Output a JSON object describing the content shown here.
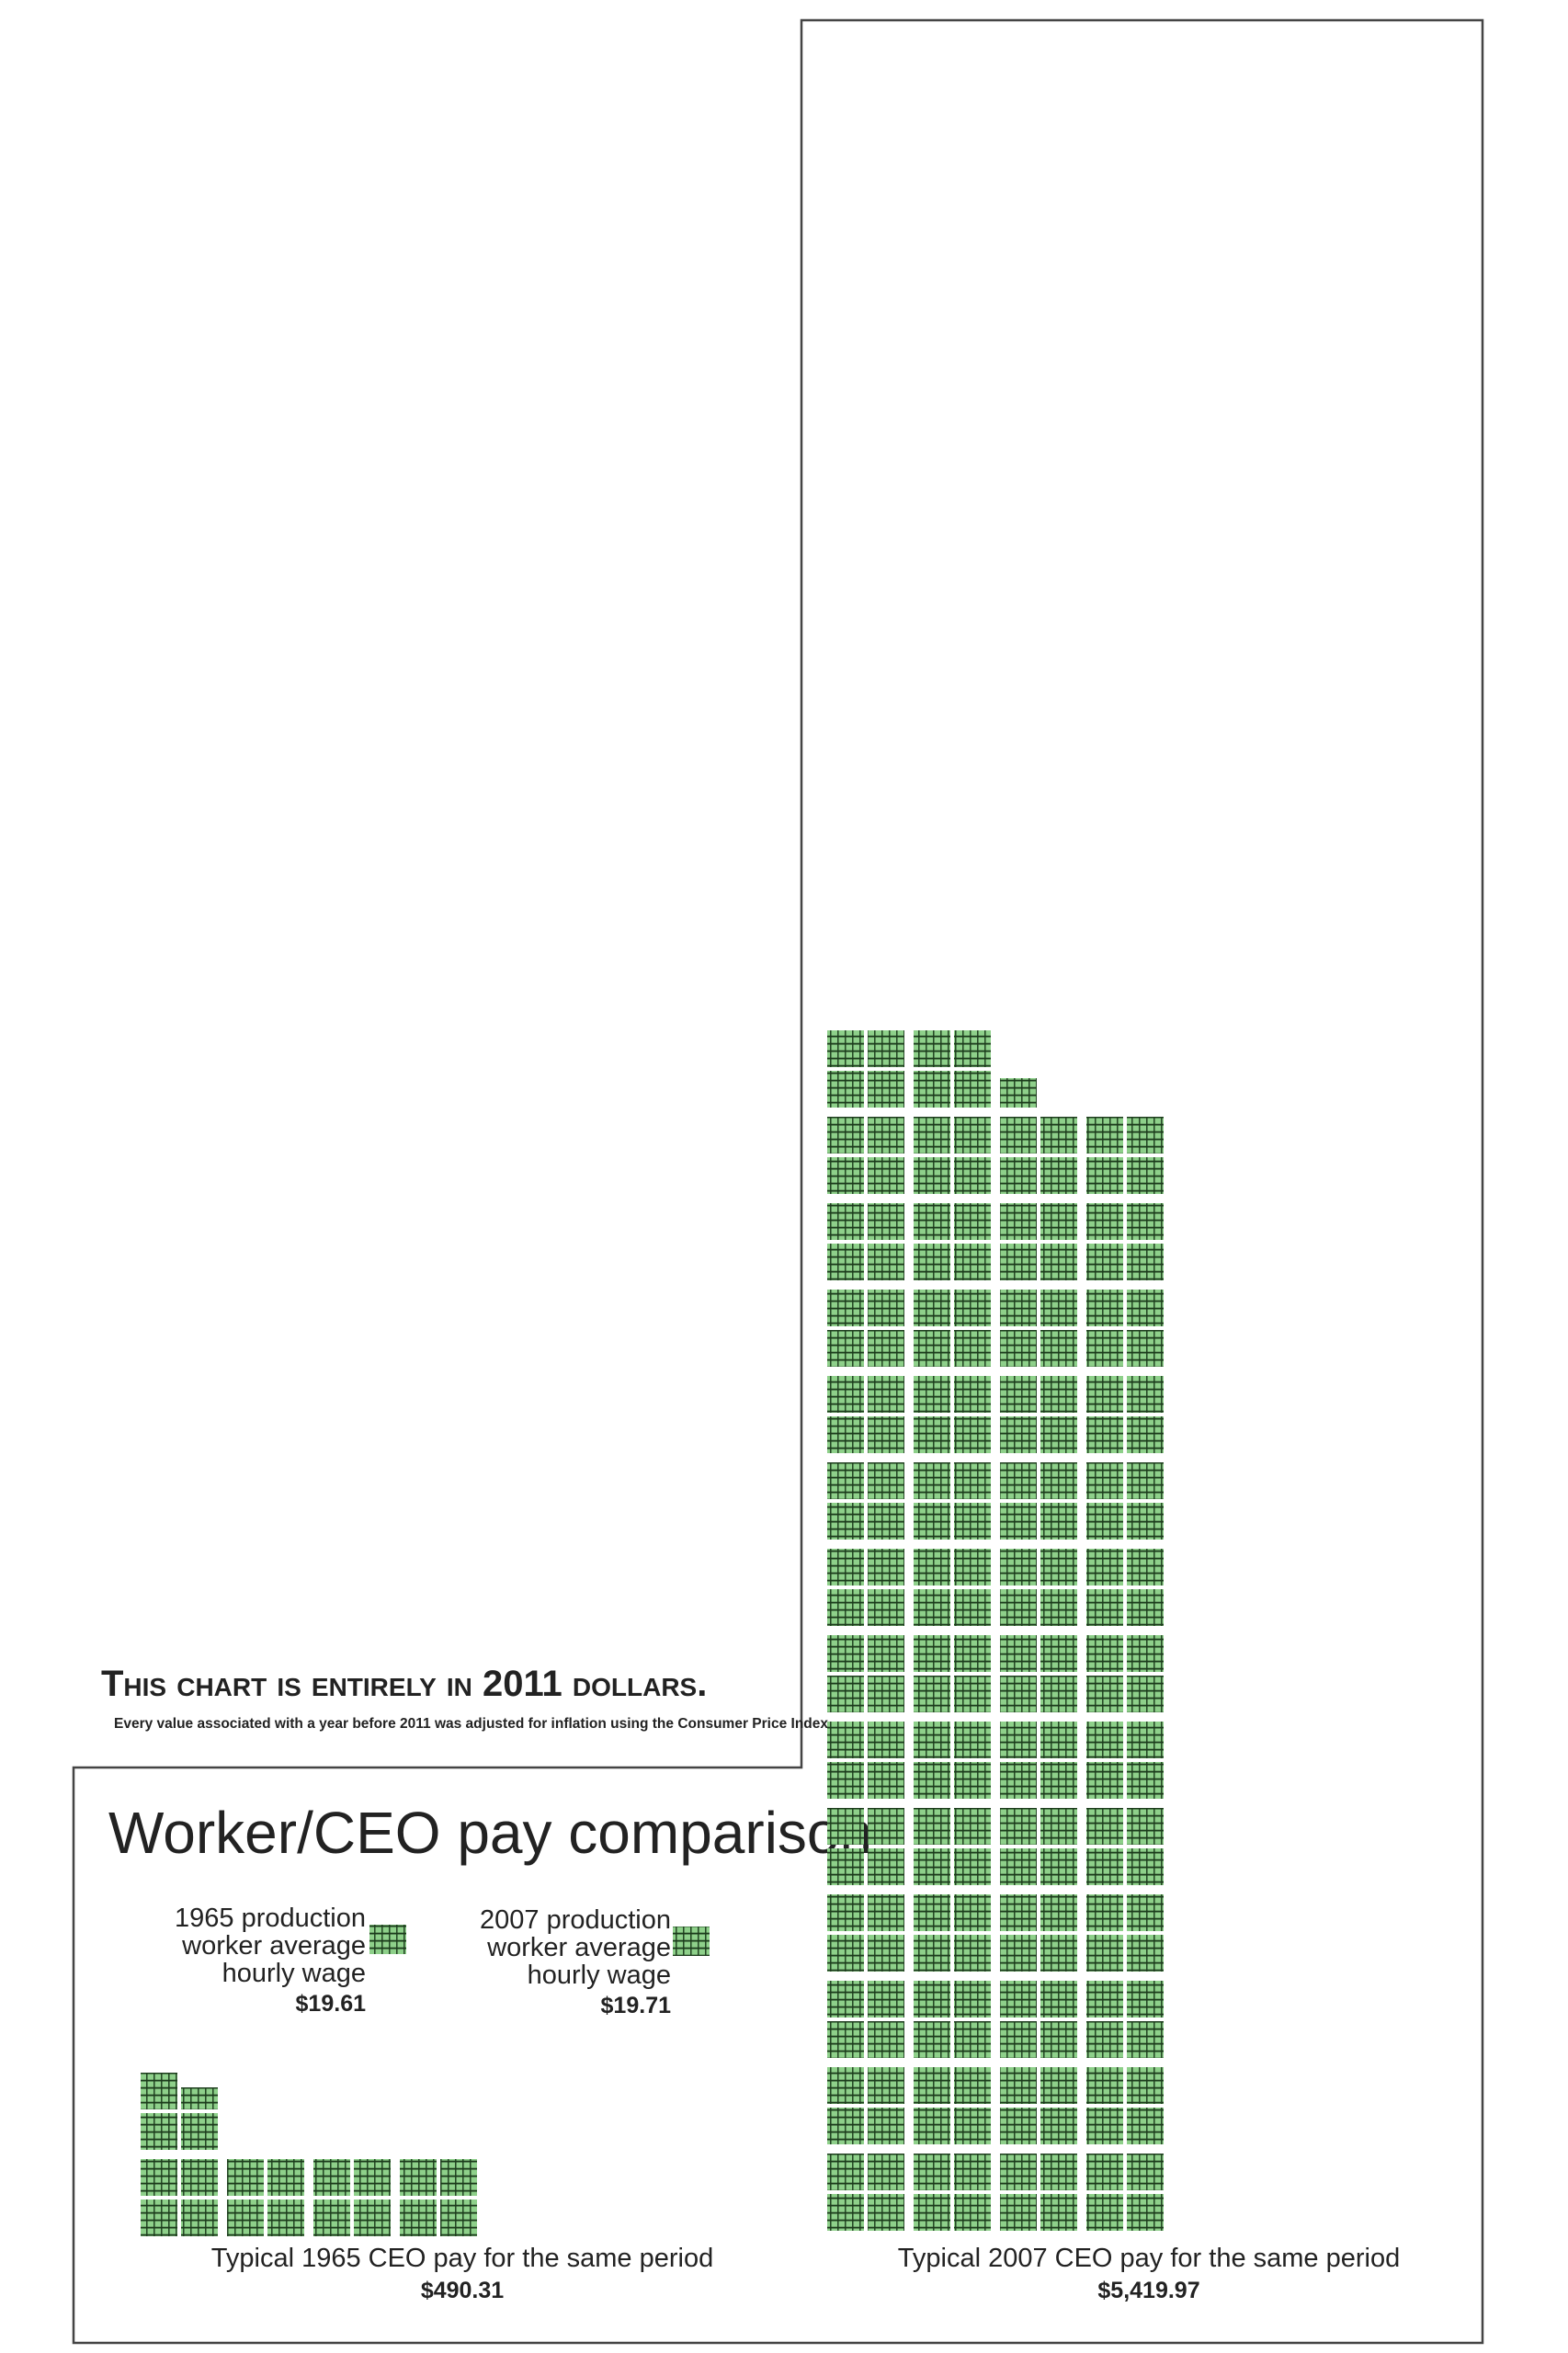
{
  "note": {
    "headline": "This chart is entirely in 2011 dollars.",
    "subtext": "Every value associated with a year before 2011 was adjusted for inflation using the Consumer Price Index."
  },
  "chart_data": {
    "type": "unit-chart",
    "title": "Worker/CEO pay comparison",
    "series": [
      {
        "name": "1965 production worker average hourly wage",
        "lines": [
          "1965 production",
          "worker average",
          "hourly wage"
        ],
        "value": 19.61,
        "value_label": "$19.61"
      },
      {
        "name": "2007 production worker average hourly wage",
        "lines": [
          "2007 production",
          "worker average",
          "hourly wage"
        ],
        "value": 19.71,
        "value_label": "$19.71"
      },
      {
        "name": "Typical 1965 CEO pay for the same period",
        "lines": [
          "Typical 1965 CEO pay for the same period"
        ],
        "value": 490.31,
        "value_label": "$490.31"
      },
      {
        "name": "Typical 2007 CEO pay for the same period",
        "lines": [
          "Typical 2007 CEO pay for the same period"
        ],
        "value": 5419.97,
        "value_label": "$5,419.97"
      }
    ]
  },
  "colors": {
    "unit_fill": "#8ed08a",
    "unit_shadow": "#1b3a1b",
    "frame": "#444444",
    "text": "#222222"
  }
}
